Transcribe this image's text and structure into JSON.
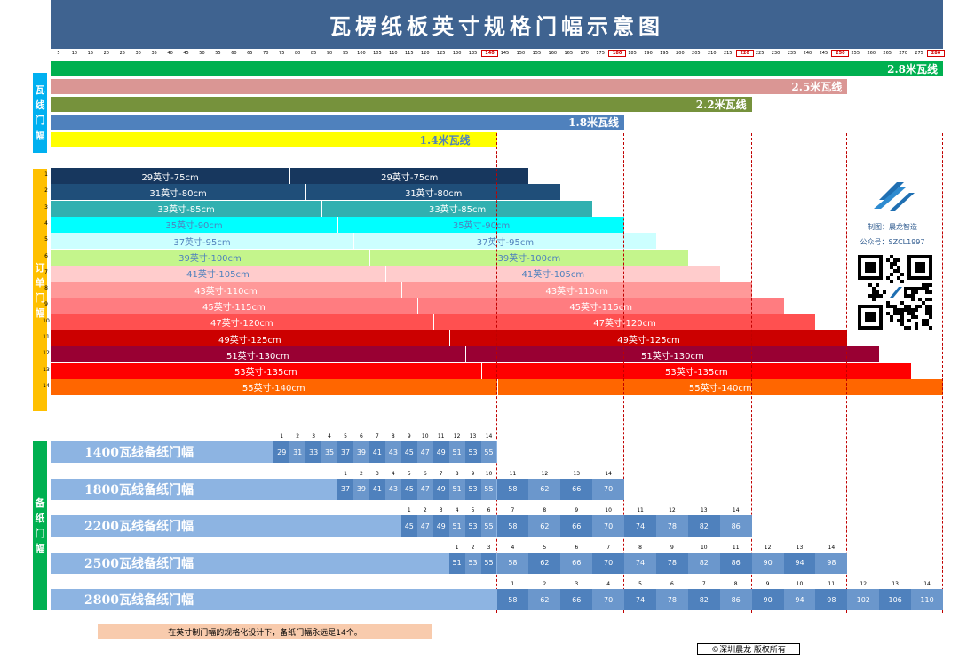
{
  "title": "瓦楞纸板英寸规格门幅示意图",
  "ruler": {
    "ticks": [
      5,
      10,
      15,
      20,
      25,
      30,
      35,
      40,
      45,
      50,
      55,
      60,
      65,
      70,
      75,
      80,
      85,
      90,
      95,
      100,
      105,
      110,
      115,
      120,
      125,
      130,
      135,
      140,
      145,
      150,
      155,
      160,
      165,
      170,
      175,
      180,
      185,
      190,
      195,
      200,
      205,
      210,
      215,
      220,
      225,
      230,
      235,
      240,
      245,
      250,
      255,
      260,
      265,
      270,
      275,
      280
    ],
    "highlight": [
      140,
      180,
      220,
      250,
      280
    ]
  },
  "sections": {
    "line": "瓦线门幅",
    "order": "订单门幅",
    "spare": "备纸门幅"
  },
  "lines": [
    {
      "label": "2.8米瓦线",
      "color": "#00b050",
      "textColor": "#ffffff",
      "width_cm": 280
    },
    {
      "label": "2.5米瓦线",
      "color": "#da9694",
      "textColor": "#ffffff",
      "width_cm": 250
    },
    {
      "label": "2.2米瓦线",
      "color": "#76923c",
      "textColor": "#ffffff",
      "width_cm": 220
    },
    {
      "label": "1.8米瓦线",
      "color": "#4f81bd",
      "textColor": "#ffffff",
      "width_cm": 180
    },
    {
      "label": "1.4米瓦线",
      "color": "#ffff00",
      "textColor": "#4f81bd",
      "width_cm": 140
    }
  ],
  "orders": [
    {
      "n": "1",
      "label": "29英寸-75cm",
      "color": "#17375e",
      "textColor": "#ffffff"
    },
    {
      "n": "2",
      "label": "31英寸-80cm",
      "color": "#1f4e79",
      "textColor": "#ffffff"
    },
    {
      "n": "3",
      "label": "33英寸-85cm",
      "color": "#31b0b0",
      "textColor": "#ffffff"
    },
    {
      "n": "4",
      "label": "35英寸-90cm",
      "color": "#00ffff",
      "textColor": "#4f81bd"
    },
    {
      "n": "5",
      "label": "37英寸-95cm",
      "color": "#ccffff",
      "textColor": "#4f81bd"
    },
    {
      "n": "6",
      "label": "39英寸-100cm",
      "color": "#c4f58c",
      "textColor": "#4f81bd"
    },
    {
      "n": "7",
      "label": "41英寸-105cm",
      "color": "#ffcccc",
      "textColor": "#4f81bd"
    },
    {
      "n": "8",
      "label": "43英寸-110cm",
      "color": "#ff9999",
      "textColor": "#ffffff"
    },
    {
      "n": "9",
      "label": "45英寸-115cm",
      "color": "#ff7c80",
      "textColor": "#ffffff"
    },
    {
      "n": "10",
      "label": "47英寸-120cm",
      "color": "#ff5050",
      "textColor": "#ffffff"
    },
    {
      "n": "11",
      "label": "49英寸-125cm",
      "color": "#cc0000",
      "textColor": "#ffffff"
    },
    {
      "n": "12",
      "label": "51英寸-130cm",
      "color": "#990033",
      "textColor": "#ffffff"
    },
    {
      "n": "13",
      "label": "53英寸-135cm",
      "color": "#ff0000",
      "textColor": "#ffffff"
    },
    {
      "n": "14",
      "label": "55英寸-140cm",
      "color": "#ff6600",
      "textColor": "#ffffff"
    }
  ],
  "spare_rows": [
    {
      "label": "1400瓦线备纸门幅",
      "values": [
        "29",
        "31",
        "33",
        "35",
        "37",
        "39",
        "41",
        "43",
        "45",
        "47",
        "49",
        "51",
        "53",
        "55"
      ]
    },
    {
      "label": "1800瓦线备纸门幅",
      "values": [
        "37",
        "39",
        "41",
        "43",
        "45",
        "47",
        "49",
        "51",
        "53",
        "55",
        "58",
        "62",
        "66",
        "70"
      ]
    },
    {
      "label": "2200瓦线备纸门幅",
      "values": [
        "45",
        "47",
        "49",
        "51",
        "53",
        "55",
        "58",
        "62",
        "66",
        "70",
        "74",
        "78",
        "82",
        "86"
      ]
    },
    {
      "label": "2500瓦线备纸门幅",
      "values": [
        "51",
        "53",
        "55",
        "58",
        "62",
        "66",
        "70",
        "74",
        "78",
        "82",
        "86",
        "90",
        "94",
        "98"
      ]
    },
    {
      "label": "2800瓦线备纸门幅",
      "values": [
        "58",
        "62",
        "66",
        "70",
        "74",
        "78",
        "82",
        "86",
        "90",
        "94",
        "98",
        "102",
        "106",
        "110"
      ]
    }
  ],
  "brand": {
    "maker": "制图：晨龙智造",
    "wechat": "公众号：SZCL1997"
  },
  "note": "在英寸制门幅的规格化设计下，备纸门幅永远是14个。",
  "copyright": "©深圳晨龙 版权所有"
}
